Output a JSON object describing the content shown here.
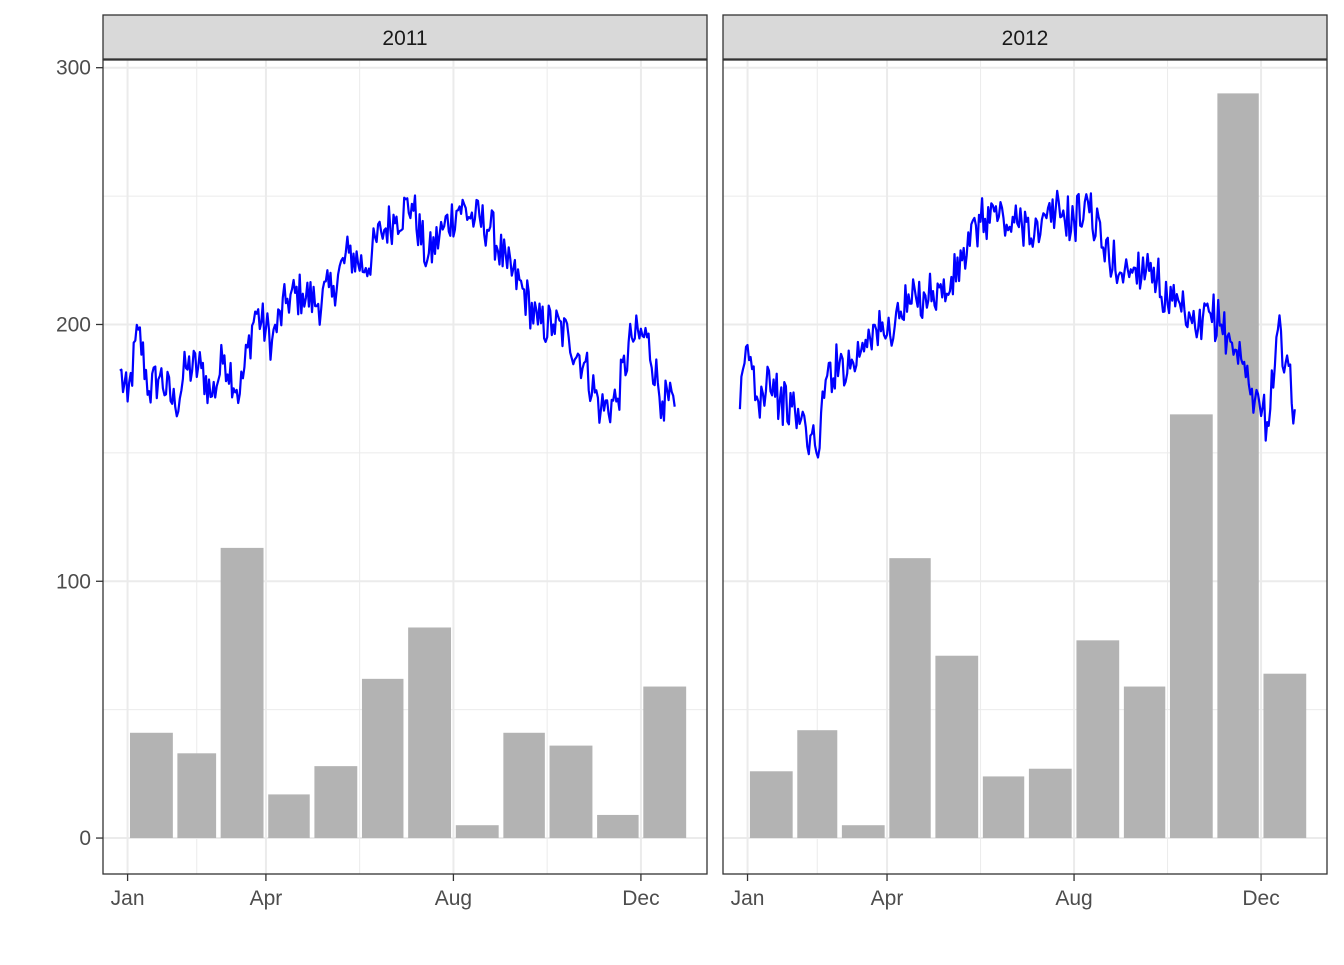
{
  "chart_data": {
    "type": "bar+line",
    "facets": [
      {
        "strip_label": "2011",
        "bars": {
          "months": [
            1,
            2,
            3,
            4,
            5,
            6,
            7,
            8,
            9,
            10,
            11,
            12
          ],
          "values": [
            41,
            33,
            113,
            17,
            28,
            62,
            82,
            5,
            41,
            36,
            9,
            59
          ]
        },
        "line": {
          "anchors": [
            [
              "2010-12-27",
              182
            ],
            [
              "2011-01-01",
              170
            ],
            [
              "2011-01-08",
              198
            ],
            [
              "2011-01-15",
              174
            ],
            [
              "2011-01-22",
              180
            ],
            [
              "2011-02-01",
              168
            ],
            [
              "2011-02-08",
              183
            ],
            [
              "2011-02-18",
              183
            ],
            [
              "2011-02-25",
              172
            ],
            [
              "2011-03-05",
              188
            ],
            [
              "2011-03-15",
              173
            ],
            [
              "2011-03-25",
              205
            ],
            [
              "2011-04-05",
              194
            ],
            [
              "2011-04-15",
              210
            ],
            [
              "2011-04-25",
              212
            ],
            [
              "2011-05-05",
              208
            ],
            [
              "2011-05-15",
              215
            ],
            [
              "2011-05-25",
              228
            ],
            [
              "2011-06-05",
              222
            ],
            [
              "2011-06-15",
              236
            ],
            [
              "2011-06-25",
              242
            ],
            [
              "2011-07-05",
              247
            ],
            [
              "2011-07-15",
              225
            ],
            [
              "2011-07-25",
              237
            ],
            [
              "2011-08-05",
              246
            ],
            [
              "2011-08-15",
              241
            ],
            [
              "2011-08-25",
              238
            ],
            [
              "2011-09-05",
              222
            ],
            [
              "2011-09-15",
              214
            ],
            [
              "2011-09-25",
              200
            ],
            [
              "2011-10-05",
              200
            ],
            [
              "2011-10-15",
              195
            ],
            [
              "2011-10-25",
              185
            ],
            [
              "2011-11-05",
              167
            ],
            [
              "2011-11-15",
              170
            ],
            [
              "2011-11-25",
              195
            ],
            [
              "2011-12-05",
              195
            ],
            [
              "2011-12-15",
              170
            ],
            [
              "2011-12-23",
              168
            ]
          ]
        }
      },
      {
        "strip_label": "2012",
        "bars": {
          "months": [
            1,
            2,
            3,
            4,
            5,
            6,
            7,
            8,
            9,
            10,
            11,
            12
          ],
          "values": [
            26,
            42,
            5,
            109,
            71,
            24,
            27,
            77,
            59,
            165,
            290,
            64
          ]
        },
        "line": {
          "anchors": [
            [
              "2011-12-27",
              167
            ],
            [
              "2012-01-01",
              192
            ],
            [
              "2012-01-08",
              170
            ],
            [
              "2012-01-15",
              182
            ],
            [
              "2012-01-22",
              170
            ],
            [
              "2012-02-01",
              166
            ],
            [
              "2012-02-08",
              160
            ],
            [
              "2012-02-15",
              150
            ],
            [
              "2012-02-22",
              180
            ],
            [
              "2012-03-01",
              185
            ],
            [
              "2012-03-10",
              185
            ],
            [
              "2012-03-20",
              198
            ],
            [
              "2012-04-01",
              196
            ],
            [
              "2012-04-10",
              205
            ],
            [
              "2012-04-20",
              210
            ],
            [
              "2012-05-01",
              213
            ],
            [
              "2012-05-10",
              212
            ],
            [
              "2012-05-20",
              225
            ],
            [
              "2012-06-01",
              240
            ],
            [
              "2012-06-10",
              244
            ],
            [
              "2012-06-20",
              238
            ],
            [
              "2012-07-01",
              240
            ],
            [
              "2012-07-10",
              235
            ],
            [
              "2012-07-20",
              245
            ],
            [
              "2012-08-01",
              240
            ],
            [
              "2012-08-10",
              248
            ],
            [
              "2012-08-20",
              230
            ],
            [
              "2012-09-01",
              220
            ],
            [
              "2012-09-10",
              222
            ],
            [
              "2012-09-20",
              224
            ],
            [
              "2012-10-01",
              208
            ],
            [
              "2012-10-10",
              205
            ],
            [
              "2012-10-20",
              195
            ],
            [
              "2012-10-28",
              205
            ],
            [
              "2012-11-05",
              200
            ],
            [
              "2012-11-15",
              190
            ],
            [
              "2012-11-25",
              175
            ],
            [
              "2012-12-05",
              162
            ],
            [
              "2012-12-12",
              198
            ],
            [
              "2012-12-17",
              185
            ],
            [
              "2012-12-23",
              167
            ]
          ]
        }
      }
    ],
    "x_ticks": [
      {
        "month": 1,
        "label": "Jan"
      },
      {
        "month": 4,
        "label": "Apr"
      },
      {
        "month": 8,
        "label": "Aug"
      },
      {
        "month": 12,
        "label": "Dec"
      }
    ],
    "y_ticks": [
      0,
      100,
      200,
      300
    ],
    "ylim": [
      -14,
      303
    ],
    "xlim": [
      "-12-16",
      "+1-01-13"
    ],
    "xlabel": "",
    "ylabel": "",
    "grid": true,
    "bar_color": "#b3b3b3",
    "line_color": "#0000ff",
    "strip_fill": "#d9d9d9"
  }
}
